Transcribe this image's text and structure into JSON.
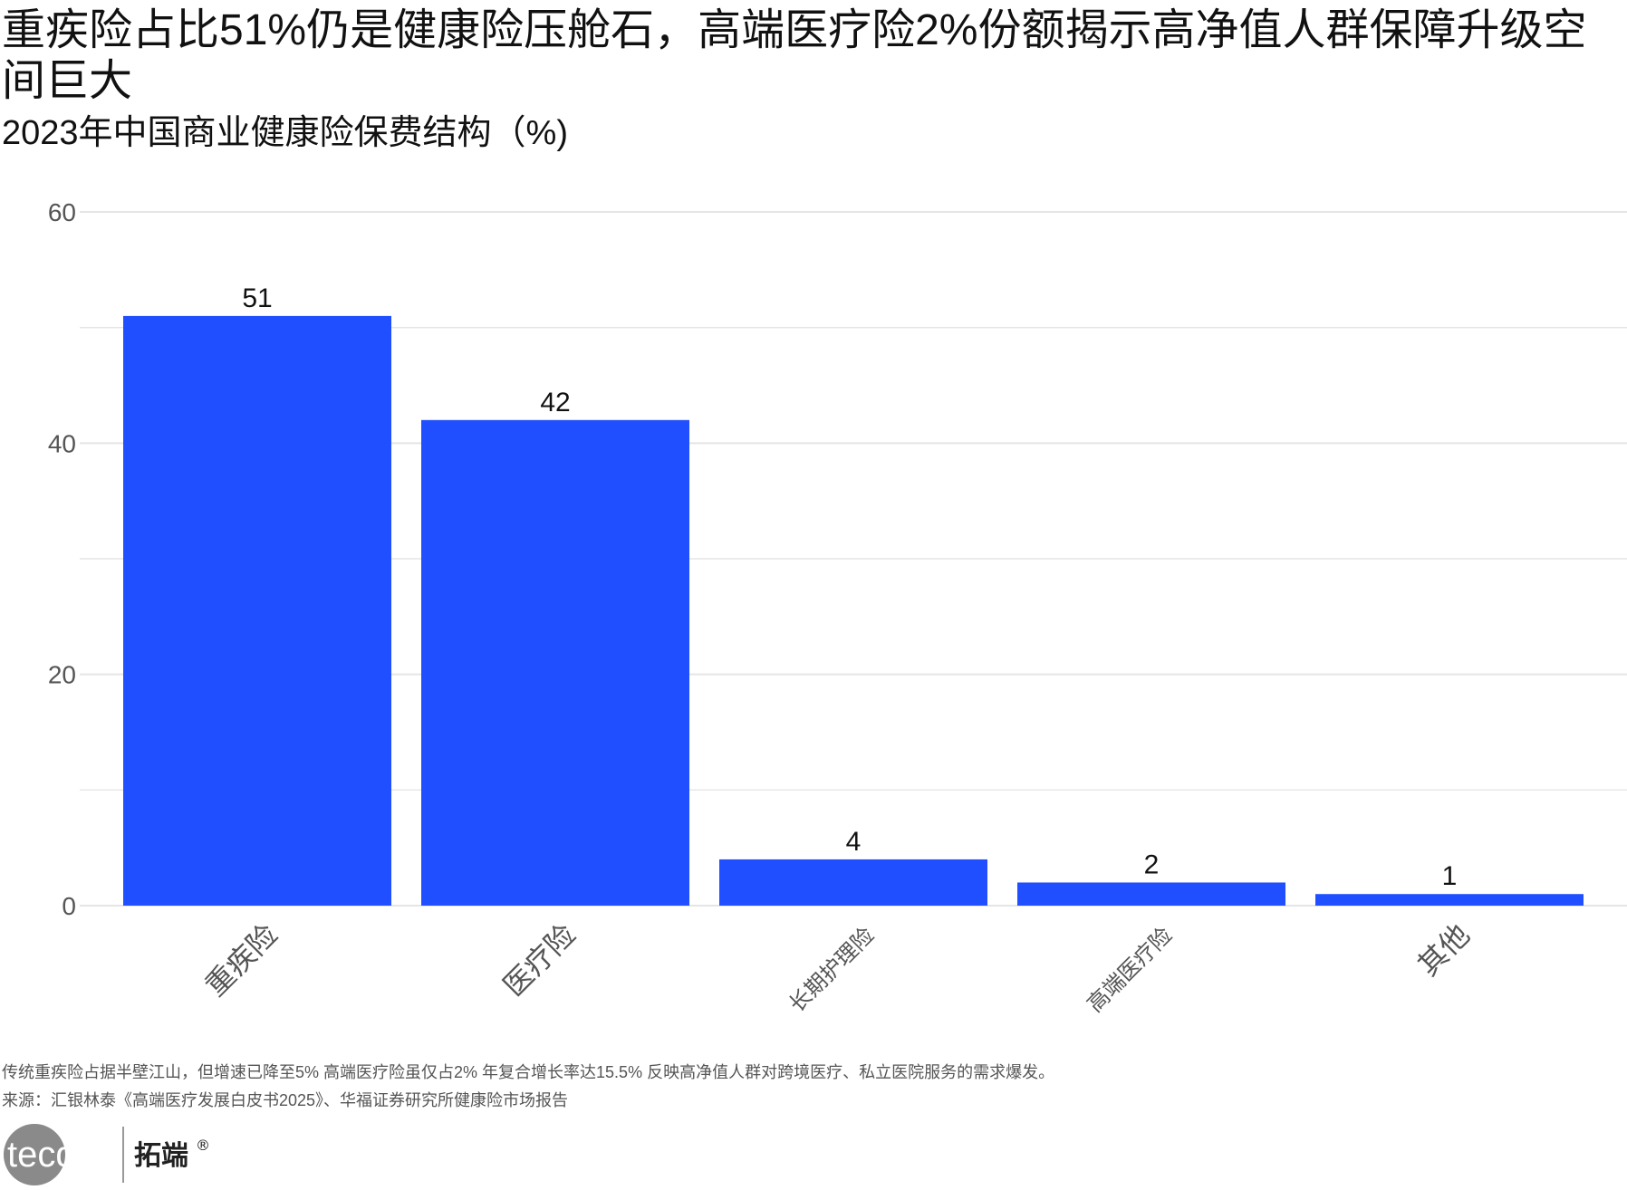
{
  "title": "重疾险占比51%仍是健康险压舱石，高端医疗险2%份额揭示高净值人群保障升级空间巨大",
  "subtitle": "2023年中国商业健康险保费结构（%)",
  "note": "传统重疾险占据半壁江山，但增速已降至5%  高端医疗险虽仅占2%  年复合增长率达15.5% 反映高净值人群对跨境医疗、私立医院服务的需求爆发。",
  "source": "来源：汇银林泰《高端医疗发展白皮书2025》、华福证券研究所健康险市场报告",
  "logo": {
    "left_text": "tecdat",
    "right_text": "拓端",
    "mark": "®"
  },
  "colors": {
    "bar": "#1f4fff",
    "grid": "#e5e5e5",
    "tick": "#555555"
  },
  "chart_data": {
    "type": "bar",
    "categories": [
      "重疾险",
      "医疗险",
      "长期护理险",
      "高端医疗险",
      "其他"
    ],
    "values": [
      51,
      42,
      4,
      2,
      1
    ],
    "ylim": [
      0,
      60
    ],
    "yticks": [
      0,
      20,
      40,
      60
    ],
    "grid": true,
    "data_labels": [
      "51",
      "42",
      "4",
      "2",
      "1"
    ]
  }
}
